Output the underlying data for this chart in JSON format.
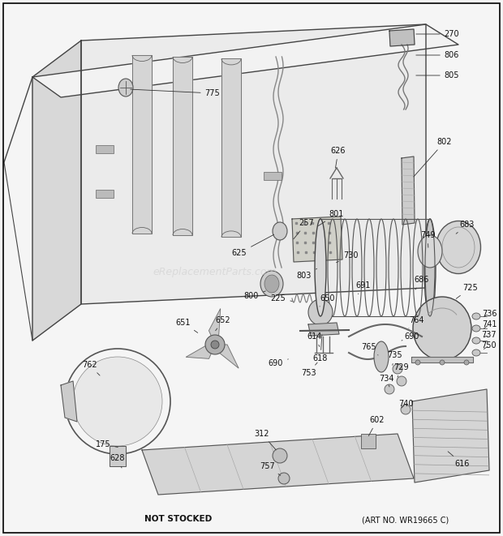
{
  "background_color": "#f5f5f5",
  "border_color": "#000000",
  "watermark": "eReplacementParts.com",
  "footer_left": "NOT STOCKED",
  "footer_right": "(ART NO. WR19665 C)",
  "fig_width": 6.2,
  "fig_height": 6.61,
  "dpi": 100,
  "line_color": "#555555",
  "text_color": "#111111",
  "label_fontsize": 7.0
}
